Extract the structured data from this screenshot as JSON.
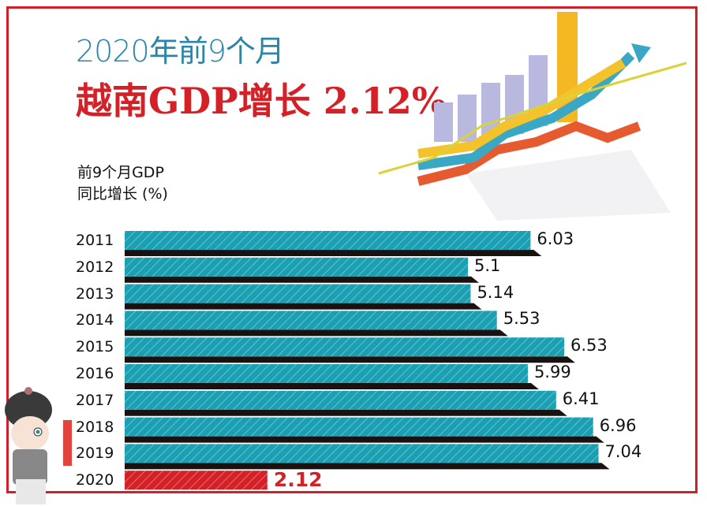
{
  "header": {
    "subtitle": "2020年前9个月",
    "title": "越南GDP增长 2.12%"
  },
  "chart_data": {
    "type": "bar",
    "orientation": "horizontal",
    "ylabel_lines": [
      "前9个月GDP",
      "同比增长 (%)"
    ],
    "categories": [
      "2011",
      "2012",
      "2013",
      "2014",
      "2015",
      "2016",
      "2017",
      "2018",
      "2019",
      "2020"
    ],
    "values": [
      6.03,
      5.1,
      5.14,
      5.53,
      6.53,
      5.99,
      6.41,
      6.96,
      7.04,
      2.12
    ],
    "value_labels": [
      "6.03",
      "5.1",
      "5.14",
      "5.53",
      "6.53",
      "5.99",
      "6.41",
      "6.96",
      "7.04",
      "2.12"
    ],
    "highlight_category": "2020",
    "xlim": [
      0,
      7.5
    ],
    "grid": false,
    "colors": {
      "bar": "#1aa0b2",
      "highlight": "#d42127",
      "shadow": "#1a1210",
      "frame": "#d0212a"
    }
  }
}
